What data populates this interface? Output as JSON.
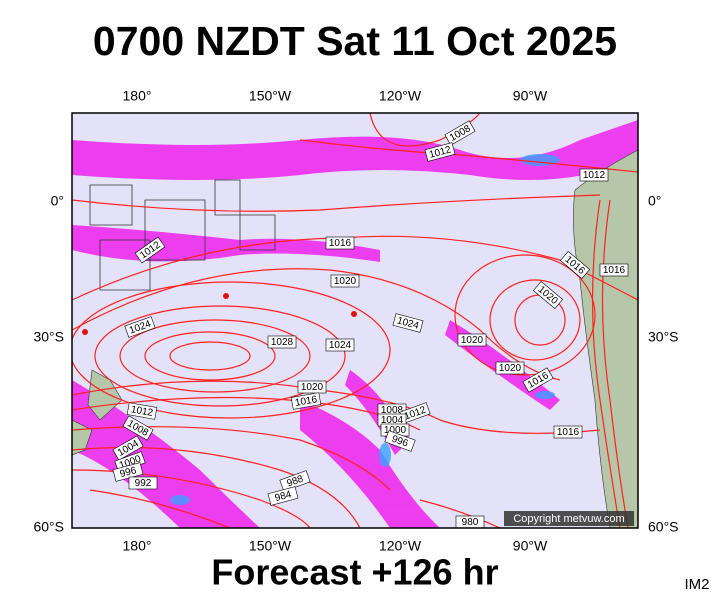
{
  "header": {
    "title": "0700 NZDT Sat 11 Oct 2025"
  },
  "map": {
    "longitude_labels": [
      "180°",
      "150°W",
      "120°W",
      "90°W"
    ],
    "latitude_labels": [
      "0°",
      "30°S",
      "60°S"
    ],
    "isobar_labels": [
      "1008",
      "1012",
      "1012",
      "1012",
      "1016",
      "1020",
      "1016",
      "1016",
      "1020",
      "1024",
      "1028",
      "1024",
      "1024",
      "1020",
      "1020",
      "1016",
      "1020",
      "1016",
      "1012",
      "1008",
      "1008",
      "1012",
      "1004",
      "1000",
      "996",
      "1004",
      "1000",
      "996",
      "992",
      "988",
      "984",
      "980",
      "1016"
    ],
    "copyright": "Copyright metvuw.com"
  },
  "footer": {
    "forecast": "Forecast +126 hr",
    "image_id": "IM2"
  }
}
